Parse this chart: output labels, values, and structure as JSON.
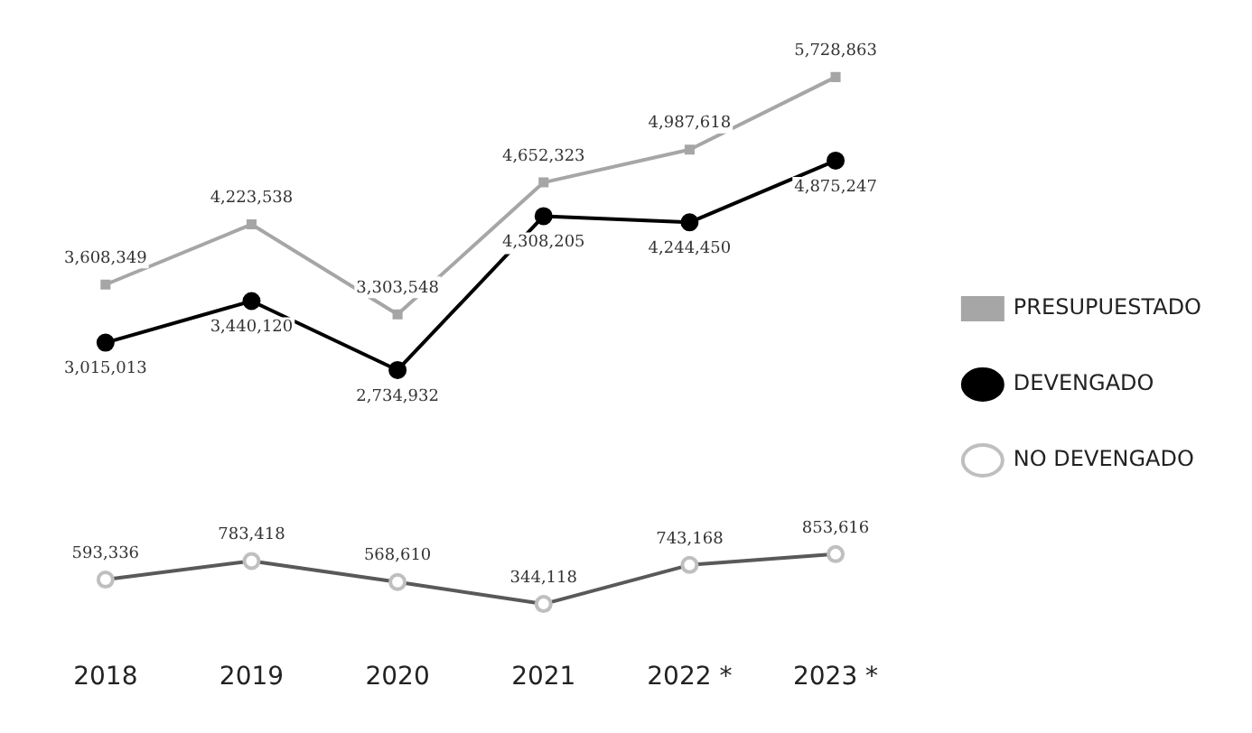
{
  "chart_data": {
    "type": "line",
    "categories": [
      "2018",
      "2019",
      "2020",
      "2021",
      "2022 *",
      "2023 *"
    ],
    "series": [
      {
        "name": "PRESUPUESTADO",
        "color": "#a6a6a6",
        "marker": "square",
        "values": [
          3608349,
          4223538,
          3303548,
          4652323,
          4987618,
          5728863
        ],
        "value_labels": [
          "3,608,349",
          "4,223,538",
          "3,303,548",
          "4,652,323",
          "4,987,618",
          "5,728,863"
        ]
      },
      {
        "name": "DEVENGADO",
        "color": "#000000",
        "marker": "circle",
        "values": [
          3015013,
          3440120,
          2734932,
          4308205,
          4244450,
          4875247
        ],
        "value_labels": [
          "3,015,013",
          "3,440,120",
          "2,734,932",
          "4,308,205",
          "4,244,450",
          "4,875,247"
        ]
      },
      {
        "name": "NO DEVENGADO",
        "color": "#595959",
        "marker": "circle",
        "values": [
          593336,
          783418,
          568610,
          344118,
          743168,
          853616
        ],
        "value_labels": [
          "593,336",
          "783,418",
          "568,610",
          "344,118",
          "743,168",
          "853,616"
        ]
      }
    ],
    "legend": "right",
    "tick_labels": "x",
    "line_style": "solid"
  }
}
